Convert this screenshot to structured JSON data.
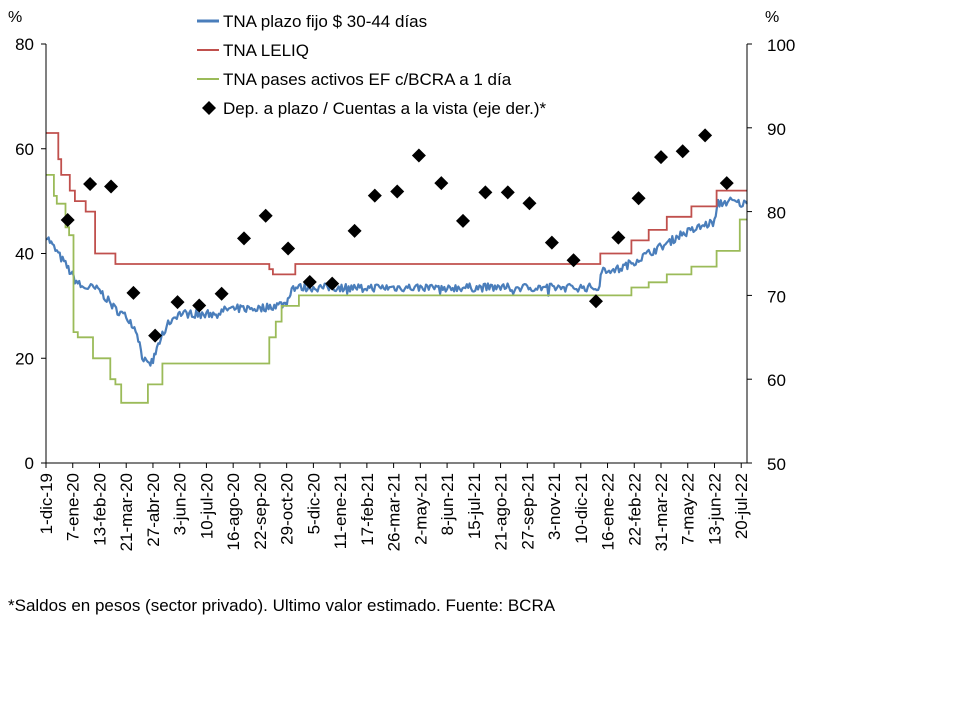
{
  "chart_data": {
    "type": "line",
    "y_left_unit": "%",
    "y_right_unit": "%",
    "y_left_range": [
      0,
      80
    ],
    "y_left_ticks": [
      "0",
      "20",
      "40",
      "60",
      "80"
    ],
    "y_right_range": [
      50,
      100
    ],
    "y_right_ticks": [
      "50",
      "60",
      "70",
      "80",
      "90",
      "100"
    ],
    "x_range": [
      "2019-12-01",
      "2022-07-28"
    ],
    "grid": false,
    "legend_placement": "top-center",
    "x_tick_labels": [
      {
        "date": "2019-12-01",
        "label": "1-dic-19"
      },
      {
        "date": "2020-01-07",
        "label": "7-ene-20"
      },
      {
        "date": "2020-02-13",
        "label": "13-feb-20"
      },
      {
        "date": "2020-03-21",
        "label": "21-mar-20"
      },
      {
        "date": "2020-04-27",
        "label": "27-abr-20"
      },
      {
        "date": "2020-06-03",
        "label": "3-jun-20"
      },
      {
        "date": "2020-07-10",
        "label": "10-jul-20"
      },
      {
        "date": "2020-08-16",
        "label": "16-ago-20"
      },
      {
        "date": "2020-09-22",
        "label": "22-sep-20"
      },
      {
        "date": "2020-10-29",
        "label": "29-oct-20"
      },
      {
        "date": "2020-12-05",
        "label": "5-dic-20"
      },
      {
        "date": "2021-01-11",
        "label": "11-ene-21"
      },
      {
        "date": "2021-02-17",
        "label": "17-feb-21"
      },
      {
        "date": "2021-03-26",
        "label": "26-mar-21"
      },
      {
        "date": "2021-05-02",
        "label": "2-may-21"
      },
      {
        "date": "2021-06-08",
        "label": "8-jun-21"
      },
      {
        "date": "2021-07-15",
        "label": "15-jul-21"
      },
      {
        "date": "2021-08-21",
        "label": "21-ago-21"
      },
      {
        "date": "2021-09-27",
        "label": "27-sep-21"
      },
      {
        "date": "2021-11-03",
        "label": "3-nov-21"
      },
      {
        "date": "2021-12-10",
        "label": "10-dic-21"
      },
      {
        "date": "2022-01-16",
        "label": "16-ene-22"
      },
      {
        "date": "2022-02-22",
        "label": "22-feb-22"
      },
      {
        "date": "2022-03-31",
        "label": "31-mar-22"
      },
      {
        "date": "2022-05-07",
        "label": "7-may-22"
      },
      {
        "date": "2022-06-13",
        "label": "13-jun-22"
      },
      {
        "date": "2022-07-20",
        "label": "20-jul-22"
      }
    ],
    "series": [
      {
        "name": "TNA plazo fijo $ 30-44 días",
        "axis": "left",
        "style": "line",
        "color": "#4a7ebb",
        "points": [
          [
            "2019-12-01",
            43.5
          ],
          [
            "2019-12-10",
            41.5
          ],
          [
            "2019-12-20",
            39.5
          ],
          [
            "2019-12-30",
            37.5
          ],
          [
            "2020-01-10",
            35.0
          ],
          [
            "2020-01-20",
            33.5
          ],
          [
            "2020-02-01",
            33.5
          ],
          [
            "2020-02-13",
            33.0
          ],
          [
            "2020-02-25",
            31.0
          ],
          [
            "2020-03-05",
            29.5
          ],
          [
            "2020-03-15",
            28.5
          ],
          [
            "2020-03-25",
            27.5
          ],
          [
            "2020-04-05",
            25.0
          ],
          [
            "2020-04-12",
            20.5
          ],
          [
            "2020-04-20",
            18.5
          ],
          [
            "2020-04-27",
            19.5
          ],
          [
            "2020-05-08",
            24.0
          ],
          [
            "2020-05-20",
            27.0
          ],
          [
            "2020-06-01",
            28.5
          ],
          [
            "2020-06-20",
            28.5
          ],
          [
            "2020-07-10",
            28.5
          ],
          [
            "2020-07-25",
            28.5
          ],
          [
            "2020-08-10",
            29.5
          ],
          [
            "2020-08-30",
            29.5
          ],
          [
            "2020-09-22",
            29.5
          ],
          [
            "2020-10-10",
            30.0
          ],
          [
            "2020-10-29",
            30.5
          ],
          [
            "2020-11-05",
            33.5
          ],
          [
            "2020-12-05",
            33.5
          ],
          [
            "2021-01-11",
            33.5
          ],
          [
            "2021-02-17",
            33.5
          ],
          [
            "2021-03-26",
            33.5
          ],
          [
            "2021-05-02",
            33.5
          ],
          [
            "2021-06-08",
            33.5
          ],
          [
            "2021-07-15",
            33.5
          ],
          [
            "2021-08-21",
            33.5
          ],
          [
            "2021-09-27",
            33.5
          ],
          [
            "2021-11-03",
            33.5
          ],
          [
            "2021-12-10",
            33.5
          ],
          [
            "2022-01-05",
            33.5
          ],
          [
            "2022-01-08",
            37.0
          ],
          [
            "2022-02-01",
            37.0
          ],
          [
            "2022-02-22",
            38.5
          ],
          [
            "2022-03-20",
            40.5
          ],
          [
            "2022-04-10",
            42.0
          ],
          [
            "2022-04-25",
            43.5
          ],
          [
            "2022-05-15",
            44.5
          ],
          [
            "2022-06-01",
            45.5
          ],
          [
            "2022-06-13",
            46.0
          ],
          [
            "2022-06-18",
            49.5
          ],
          [
            "2022-07-05",
            50.0
          ],
          [
            "2022-07-20",
            49.5
          ],
          [
            "2022-07-28",
            49.5
          ]
        ]
      },
      {
        "name": "TNA LELIQ",
        "axis": "left",
        "style": "step",
        "color": "#c0504d",
        "points": [
          [
            "2019-12-01",
            63.0
          ],
          [
            "2019-12-18",
            58.0
          ],
          [
            "2019-12-22",
            55.0
          ],
          [
            "2020-01-03",
            52.0
          ],
          [
            "2020-01-10",
            50.0
          ],
          [
            "2020-01-25",
            48.0
          ],
          [
            "2020-02-07",
            40.0
          ],
          [
            "2020-03-06",
            38.0
          ],
          [
            "2020-10-05",
            37.0
          ],
          [
            "2020-10-10",
            36.0
          ],
          [
            "2020-11-10",
            38.0
          ],
          [
            "2022-01-06",
            40.0
          ],
          [
            "2022-02-18",
            42.5
          ],
          [
            "2022-03-14",
            44.5
          ],
          [
            "2022-04-08",
            47.0
          ],
          [
            "2022-05-12",
            49.0
          ],
          [
            "2022-06-16",
            52.0
          ],
          [
            "2022-07-28",
            52.0
          ]
        ]
      },
      {
        "name": "TNA pases activos EF c/BCRA a 1 día",
        "axis": "left",
        "style": "step",
        "color": "#9bbb59",
        "points": [
          [
            "2019-12-01",
            55.0
          ],
          [
            "2019-12-12",
            51.0
          ],
          [
            "2019-12-16",
            49.5
          ],
          [
            "2019-12-28",
            45.0
          ],
          [
            "2020-01-02",
            43.5
          ],
          [
            "2020-01-08",
            25.0
          ],
          [
            "2020-01-14",
            24.0
          ],
          [
            "2020-02-04",
            20.0
          ],
          [
            "2020-02-28",
            16.0
          ],
          [
            "2020-03-06",
            15.0
          ],
          [
            "2020-03-14",
            11.5
          ],
          [
            "2020-04-20",
            15.0
          ],
          [
            "2020-05-10",
            19.0
          ],
          [
            "2020-10-05",
            24.0
          ],
          [
            "2020-10-14",
            27.0
          ],
          [
            "2020-10-22",
            30.0
          ],
          [
            "2020-11-15",
            32.0
          ],
          [
            "2022-01-06",
            32.0
          ],
          [
            "2022-02-18",
            33.5
          ],
          [
            "2022-03-14",
            34.5
          ],
          [
            "2022-04-08",
            36.0
          ],
          [
            "2022-05-12",
            37.5
          ],
          [
            "2022-06-16",
            40.5
          ],
          [
            "2022-07-18",
            46.5
          ],
          [
            "2022-07-28",
            46.5
          ]
        ]
      },
      {
        "name": "Dep. a plazo / Cuentas a la vista (eje der.)*",
        "axis": "right",
        "style": "markers",
        "color": "#000000",
        "points": [
          [
            "2019-12-31",
            79.0
          ],
          [
            "2020-01-31",
            83.3
          ],
          [
            "2020-02-29",
            83.0
          ],
          [
            "2020-03-31",
            70.3
          ],
          [
            "2020-04-30",
            65.2
          ],
          [
            "2020-05-31",
            69.2
          ],
          [
            "2020-06-30",
            68.8
          ],
          [
            "2020-07-31",
            70.2
          ],
          [
            "2020-08-31",
            76.8
          ],
          [
            "2020-09-30",
            79.5
          ],
          [
            "2020-10-31",
            75.6
          ],
          [
            "2020-11-30",
            71.6
          ],
          [
            "2020-12-31",
            71.4
          ],
          [
            "2021-01-31",
            77.7
          ],
          [
            "2021-02-28",
            81.9
          ],
          [
            "2021-03-31",
            82.4
          ],
          [
            "2021-04-30",
            86.7
          ],
          [
            "2021-05-31",
            83.4
          ],
          [
            "2021-06-30",
            78.9
          ],
          [
            "2021-07-31",
            82.3
          ],
          [
            "2021-08-31",
            82.3
          ],
          [
            "2021-09-30",
            81.0
          ],
          [
            "2021-10-31",
            76.3
          ],
          [
            "2021-11-30",
            74.2
          ],
          [
            "2021-12-31",
            69.3
          ],
          [
            "2022-01-31",
            76.9
          ],
          [
            "2022-02-28",
            81.6
          ],
          [
            "2022-03-31",
            86.5
          ],
          [
            "2022-04-30",
            87.2
          ],
          [
            "2022-05-31",
            89.1
          ],
          [
            "2022-06-30",
            83.4
          ]
        ]
      }
    ]
  },
  "footnote": "*Saldos en pesos (sector privado). Ultimo valor estimado. Fuente: BCRA"
}
